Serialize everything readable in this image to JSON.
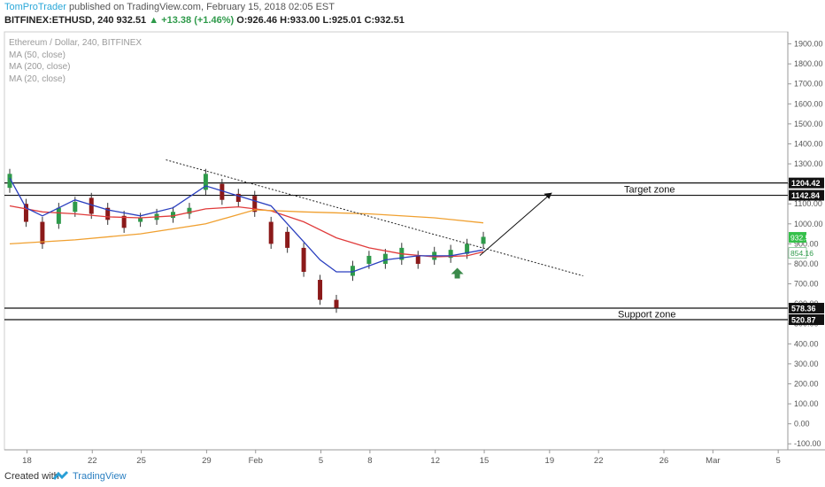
{
  "header": {
    "author": "TomProTrader",
    "published": "published on TradingView.com, February 15, 2018 02:05 EST"
  },
  "info": {
    "symbol": "BITFINEX:ETHUSD, 240",
    "last": "932.51",
    "change": "▲ +13.38 (+1.46%)",
    "open": "O:926.46",
    "high": "H:933.00",
    "low": "L:925.01",
    "close": "C:932.51"
  },
  "legend": {
    "title": "Ethereum / Dollar, 240, BITFINEX",
    "ma50": "MA (50, close)",
    "ma200": "MA (200, close)",
    "ma20": "MA (20, close)"
  },
  "footer": {
    "created": "Created with",
    "brand": "TradingView"
  },
  "colors": {
    "up": "#2e9a4a",
    "down": "#8b1a1a",
    "ma50": "#e03b3b",
    "ma200": "#f0a030",
    "ma20": "#2a3fbf",
    "price_badge": "#35c04a",
    "ma_badge": "#ffffff",
    "level_badge": "#111111"
  },
  "chart_data": {
    "type": "line",
    "axis": {
      "y_ticks": [
        "1900.00",
        "1800.00",
        "1700.00",
        "1600.00",
        "1500.00",
        "1400.00",
        "1300.00",
        "1200.00",
        "1100.00",
        "1000.00",
        "900.00",
        "800.00",
        "700.00",
        "600.00",
        "500.00",
        "400.00",
        "300.00",
        "200.00",
        "100.00",
        "0.00",
        "-100.00"
      ],
      "y_range": [
        -130,
        1960
      ],
      "x_ticks": [
        "18",
        "22",
        "25",
        "29",
        "Feb",
        "5",
        "8",
        "12",
        "15",
        "19",
        "22",
        "26",
        "Mar",
        "5"
      ],
      "x_range_note": "4-hour candles, Jan 17 – Mar 7, 2018"
    },
    "series": [
      {
        "name": "MA (50, close)",
        "x": [
          "Jan 17",
          "Jan 19",
          "Jan 21",
          "Jan 23",
          "Jan 25",
          "Jan 27",
          "Jan 29",
          "Jan 31",
          "Feb 2",
          "Feb 4",
          "Feb 6",
          "Feb 8",
          "Feb 10",
          "Feb 12",
          "Feb 14",
          "Feb 15"
        ],
        "y": [
          1090,
          1060,
          1050,
          1035,
          1030,
          1040,
          1075,
          1085,
          1065,
          1010,
          930,
          880,
          850,
          835,
          840,
          860
        ]
      },
      {
        "name": "MA (200, close)",
        "x": [
          "Jan 17",
          "Jan 21",
          "Jan 25",
          "Jan 29",
          "Feb 1",
          "Feb 4",
          "Feb 8",
          "Feb 12",
          "Feb 15"
        ],
        "y": [
          900,
          920,
          950,
          1000,
          1070,
          1060,
          1050,
          1030,
          1005
        ]
      },
      {
        "name": "MA (20, close)",
        "x": [
          "Jan 17",
          "Jan 18",
          "Jan 19",
          "Jan 21",
          "Jan 23",
          "Jan 25",
          "Jan 27",
          "Jan 29",
          "Jan 31",
          "Feb 2",
          "Feb 4",
          "Feb 5",
          "Feb 6",
          "Feb 7",
          "Feb 9",
          "Feb 11",
          "Feb 13",
          "Feb 15"
        ],
        "y": [
          1230,
          1080,
          1040,
          1120,
          1070,
          1040,
          1080,
          1190,
          1140,
          1090,
          910,
          820,
          760,
          760,
          820,
          840,
          840,
          870
        ]
      }
    ],
    "candles": [
      [
        "Jan 17",
        1250,
        1180
      ],
      [
        "Jan 18",
        1100,
        1010
      ],
      [
        "Jan 19",
        1010,
        900
      ],
      [
        "Jan 20",
        1080,
        1000
      ],
      [
        "Jan 21",
        1110,
        1060
      ],
      [
        "Jan 22",
        1130,
        1050
      ],
      [
        "Jan 23",
        1080,
        1020
      ],
      [
        "Jan 24",
        1040,
        980
      ],
      [
        "Jan 25",
        1030,
        1010
      ],
      [
        "Jan 26",
        1050,
        1020
      ],
      [
        "Jan 27",
        1060,
        1030
      ],
      [
        "Jan 28",
        1080,
        1050
      ],
      [
        "Jan 29",
        1250,
        1170
      ],
      [
        "Jan 30",
        1200,
        1120
      ],
      [
        "Jan 31",
        1150,
        1110
      ],
      [
        "Feb 1",
        1140,
        1060
      ],
      [
        "Feb 2",
        1010,
        900
      ],
      [
        "Feb 3",
        960,
        880
      ],
      [
        "Feb 4",
        880,
        760
      ],
      [
        "Feb 5",
        720,
        620
      ],
      [
        "Feb 6",
        620,
        580
      ],
      [
        "Feb 7",
        790,
        740
      ],
      [
        "Feb 8",
        840,
        800
      ],
      [
        "Feb 9",
        850,
        800
      ],
      [
        "Feb 10",
        880,
        820
      ],
      [
        "Feb 11",
        840,
        800
      ],
      [
        "Feb 12",
        860,
        820
      ],
      [
        "Feb 13",
        870,
        830
      ],
      [
        "Feb 14",
        900,
        850
      ],
      [
        "Feb 15",
        935,
        900
      ]
    ],
    "levels": [
      {
        "value": 1204.42,
        "label": "1204.42"
      },
      {
        "value": 1142.84,
        "label": "1142.84"
      },
      {
        "value": 578.36,
        "label": "578.36"
      },
      {
        "value": 520.87,
        "label": "520.87"
      }
    ],
    "zones": [
      {
        "label": "Target zone",
        "range": [
          1142.84,
          1204.42
        ]
      },
      {
        "label": "Support zone",
        "range": [
          520.87,
          578.36
        ]
      }
    ],
    "price_badge": "932.51",
    "ma_badge": "854.16",
    "trendline": {
      "from": [
        "Jan 27",
        1320
      ],
      "to": [
        "Feb 21",
        740
      ]
    },
    "projection_arrow": {
      "from": [
        "Feb 15",
        930
      ],
      "to": [
        "Feb 18",
        1155
      ]
    },
    "annotation": "up-arrow under Feb 14 candle"
  }
}
